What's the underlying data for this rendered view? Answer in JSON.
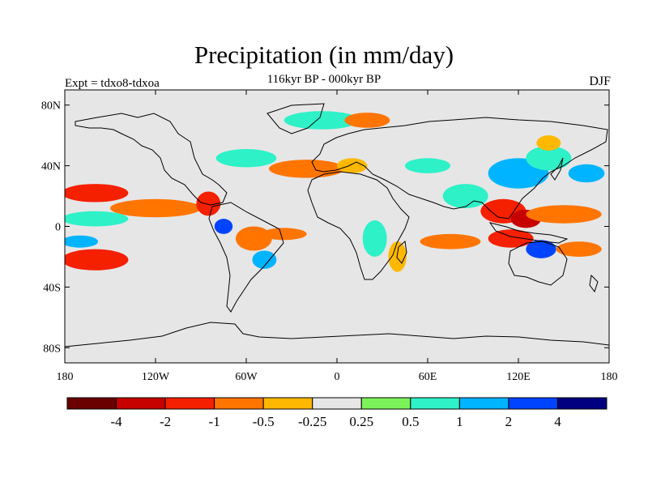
{
  "title": "Precipitation (in mm/day)",
  "subtitle": "116kyr BP - 000kyr BP",
  "experiment": "Expt = tdxo8-tdxoa",
  "season": "DJF",
  "map": {
    "projection": "cylindrical equidistant",
    "lon_range": [
      -180,
      180
    ],
    "lat_range": [
      -90,
      90
    ],
    "background_color": "#e6e6e6",
    "y_ticks": [
      {
        "lat": 80,
        "label": "80N"
      },
      {
        "lat": 40,
        "label": "40N"
      },
      {
        "lat": 0,
        "label": "0"
      },
      {
        "lat": -40,
        "label": "40S"
      },
      {
        "lat": -80,
        "label": "80S"
      }
    ],
    "x_ticks": [
      {
        "lon": -180,
        "label": "180"
      },
      {
        "lon": -120,
        "label": "120W"
      },
      {
        "lon": -60,
        "label": "60W"
      },
      {
        "lon": 0,
        "label": "0"
      },
      {
        "lon": 60,
        "label": "60E"
      },
      {
        "lon": 120,
        "label": "120E"
      },
      {
        "lon": 180,
        "label": "180"
      }
    ],
    "anomaly_regions": [
      {
        "lon": -160,
        "lat": 22,
        "rlon": 22,
        "rlat": 6,
        "level": -2
      },
      {
        "lon": -120,
        "lat": 12,
        "rlon": 30,
        "rlat": 6,
        "level": -1
      },
      {
        "lon": -160,
        "lat": -22,
        "rlon": 22,
        "rlat": 7,
        "level": -2
      },
      {
        "lon": -160,
        "lat": 5,
        "rlon": 22,
        "rlat": 5,
        "level": 0.5
      },
      {
        "lon": -170,
        "lat": -10,
        "rlon": 12,
        "rlat": 4,
        "level": 1
      },
      {
        "lon": -85,
        "lat": 15,
        "rlon": 8,
        "rlat": 8,
        "level": -2
      },
      {
        "lon": -75,
        "lat": 0,
        "rlon": 6,
        "rlat": 5,
        "level": 2
      },
      {
        "lon": -55,
        "lat": -8,
        "rlon": 12,
        "rlat": 8,
        "level": -1
      },
      {
        "lon": -48,
        "lat": -22,
        "rlon": 8,
        "rlat": 6,
        "level": 1
      },
      {
        "lon": -60,
        "lat": 45,
        "rlon": 20,
        "rlat": 6,
        "level": 0.5
      },
      {
        "lon": -20,
        "lat": 38,
        "rlon": 25,
        "rlat": 6,
        "level": -1
      },
      {
        "lon": 10,
        "lat": 40,
        "rlon": 10,
        "rlat": 5,
        "level": -0.5
      },
      {
        "lon": -10,
        "lat": 70,
        "rlon": 25,
        "rlat": 6,
        "level": 0.5
      },
      {
        "lon": 20,
        "lat": 70,
        "rlon": 15,
        "rlat": 5,
        "level": -1
      },
      {
        "lon": -35,
        "lat": -5,
        "rlon": 15,
        "rlat": 4,
        "level": -1
      },
      {
        "lon": 25,
        "lat": -8,
        "rlon": 8,
        "rlat": 12,
        "level": 0.5
      },
      {
        "lon": 40,
        "lat": -20,
        "rlon": 6,
        "rlat": 10,
        "level": -0.5
      },
      {
        "lon": 75,
        "lat": -10,
        "rlon": 20,
        "rlat": 5,
        "level": -1
      },
      {
        "lon": 85,
        "lat": 20,
        "rlon": 15,
        "rlat": 8,
        "level": 0.5
      },
      {
        "lon": 110,
        "lat": 10,
        "rlon": 15,
        "rlat": 8,
        "level": -2
      },
      {
        "lon": 125,
        "lat": 5,
        "rlon": 10,
        "rlat": 6,
        "level": -4
      },
      {
        "lon": 150,
        "lat": 8,
        "rlon": 25,
        "rlat": 6,
        "level": -1
      },
      {
        "lon": 115,
        "lat": -8,
        "rlon": 15,
        "rlat": 6,
        "level": -2
      },
      {
        "lon": 135,
        "lat": -15,
        "rlon": 10,
        "rlat": 6,
        "level": 2
      },
      {
        "lon": 160,
        "lat": -15,
        "rlon": 15,
        "rlat": 5,
        "level": -1
      },
      {
        "lon": 120,
        "lat": 35,
        "rlon": 20,
        "rlat": 10,
        "level": 1
      },
      {
        "lon": 140,
        "lat": 45,
        "rlon": 15,
        "rlat": 8,
        "level": 0.5
      },
      {
        "lon": 165,
        "lat": 35,
        "rlon": 12,
        "rlat": 6,
        "level": 1
      },
      {
        "lon": 140,
        "lat": 55,
        "rlon": 8,
        "rlat": 5,
        "level": -0.5
      },
      {
        "lon": 60,
        "lat": 40,
        "rlon": 15,
        "rlat": 5,
        "level": 0.5
      }
    ]
  },
  "colorbar": {
    "colors": [
      "#6b0000",
      "#c70000",
      "#f52000",
      "#ff7500",
      "#ffb800",
      "#e6e6e6",
      "#7cf25a",
      "#2ef1c8",
      "#00b4ff",
      "#0044ff",
      "#000080"
    ],
    "labels": [
      "-4",
      "-2",
      "-1",
      "-0.5",
      "-0.25",
      "0.25",
      "0.5",
      "1",
      "2",
      "4"
    ]
  }
}
